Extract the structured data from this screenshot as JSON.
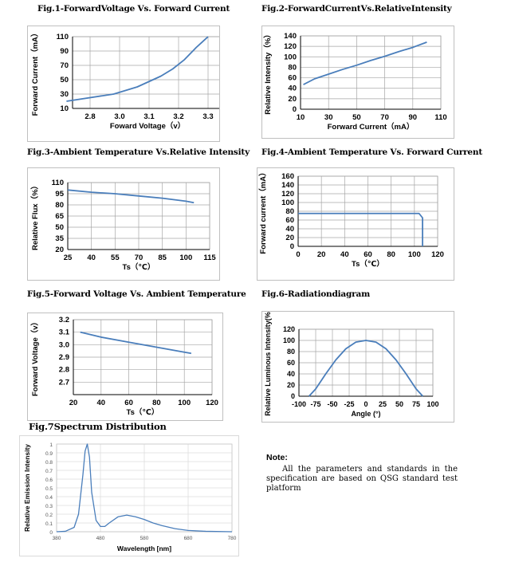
{
  "figures": [
    {
      "title": "Fig.1-ForwardVoltage Vs. Forward Current"
    },
    {
      "title": "Fig.2-ForwardCurrentVs.RelativeIntensity"
    },
    {
      "title": "Fig.3-Ambient Temperature Vs.Relative Intensity"
    },
    {
      "title": "Fig.4-Ambient Temperature Vs. Forward Current"
    },
    {
      "title": "Fig.5-Forward Voltage Vs. Ambient Temperature"
    },
    {
      "title": "Fig.6-Radiationdiagram"
    },
    {
      "title": "Fig.7Spectrum Distribution"
    }
  ],
  "note": {
    "heading": "Note:",
    "text": "All the parameters and standards in the specification are based on QSG standard test platform"
  },
  "colors": {
    "curve": "#4a7ebb",
    "grid": "#a6a6a6",
    "axis": "#000000"
  },
  "chart_data": [
    {
      "type": "line",
      "xlabel": "Foward Voltage（v）",
      "ylabel": "Forward Current（mA）",
      "xticks": [
        "2.8",
        "3.0",
        "3.1",
        "3.2",
        "3.3"
      ],
      "yticks": [
        "10",
        "30",
        "50",
        "70",
        "90",
        "110"
      ],
      "ylim": [
        10,
        110
      ],
      "x": [
        2.7,
        2.9,
        3.0,
        3.1,
        3.15,
        3.2,
        3.25,
        3.3
      ],
      "y": [
        20,
        30,
        40,
        55,
        65,
        78,
        95,
        110
      ],
      "grid": true
    },
    {
      "type": "line",
      "xlabel": "Forward Current（mA）",
      "ylabel": "Relative Intensity（%）",
      "xticks": [
        "10",
        "30",
        "50",
        "70",
        "90",
        "110"
      ],
      "yticks": [
        "0",
        "20",
        "40",
        "60",
        "80",
        "100",
        "120",
        "140"
      ],
      "xlim": [
        10,
        110
      ],
      "ylim": [
        0,
        140
      ],
      "x": [
        12,
        20,
        30,
        40,
        50,
        60,
        70,
        80,
        90,
        100
      ],
      "y": [
        47,
        58,
        67,
        76,
        84,
        93,
        101,
        110,
        118,
        128
      ],
      "grid": true
    },
    {
      "type": "line",
      "xlabel": "Ts（℃）",
      "ylabel": "Relative Flux（%）",
      "xticks": [
        "25",
        "40",
        "55",
        "70",
        "85",
        "100",
        "115"
      ],
      "yticks": [
        "20",
        "35",
        "50",
        "65",
        "80",
        "95",
        "110"
      ],
      "xlim": [
        25,
        115
      ],
      "ylim": [
        20,
        110
      ],
      "x": [
        25,
        40,
        55,
        70,
        85,
        100,
        105
      ],
      "y": [
        100,
        97,
        95,
        92,
        89,
        85,
        83
      ],
      "grid": true
    },
    {
      "type": "line",
      "xlabel": "Ts（℃）",
      "ylabel": "Forward current（mA）",
      "xticks": [
        "0",
        "20",
        "40",
        "60",
        "80",
        "100",
        "120"
      ],
      "yticks": [
        "0",
        "20",
        "40",
        "60",
        "80",
        "100",
        "120",
        "140",
        "160"
      ],
      "xlim": [
        0,
        120
      ],
      "ylim": [
        0,
        160
      ],
      "x": [
        0,
        100,
        104,
        107,
        107
      ],
      "y": [
        75,
        75,
        75,
        65,
        0
      ],
      "grid": true
    },
    {
      "type": "line",
      "xlabel": "Ts（℃）",
      "ylabel": "Forward Voltage（v）",
      "xticks": [
        "20",
        "40",
        "60",
        "80",
        "100",
        "120"
      ],
      "yticks": [
        "2.7",
        "2.8",
        "2.9",
        "3.0",
        "3.1",
        "3.2"
      ],
      "xlim": [
        20,
        120
      ],
      "ylim": [
        2.6,
        3.2
      ],
      "x": [
        25,
        40,
        60,
        80,
        100,
        105
      ],
      "y": [
        3.1,
        3.06,
        3.02,
        2.98,
        2.94,
        2.93
      ],
      "grid": true
    },
    {
      "type": "line",
      "xlabel": "Angle (°)",
      "ylabel": "Relative Luminous Intensity(%)",
      "xticks": [
        "-100",
        "-75",
        "-50",
        "-25",
        "0",
        "25",
        "50",
        "75",
        "100"
      ],
      "yticks": [
        "0",
        "20",
        "40",
        "60",
        "80",
        "100",
        "120"
      ],
      "xlim": [
        -100,
        100
      ],
      "ylim": [
        0,
        120
      ],
      "x": [
        -85,
        -75,
        -60,
        -45,
        -30,
        -15,
        0,
        15,
        30,
        45,
        60,
        75,
        85
      ],
      "y": [
        0,
        13,
        40,
        65,
        85,
        97,
        100,
        97,
        85,
        65,
        40,
        13,
        0
      ],
      "grid": true
    },
    {
      "type": "line",
      "xlabel": "Wavelength [nm]",
      "ylabel": "Relative Emission Intensity",
      "xticks": [
        "380",
        "480",
        "580",
        "680",
        "780"
      ],
      "yticks": [
        "0",
        "0.1",
        "0.2",
        "0.3",
        "0.4",
        "0.5",
        "0.6",
        "0.7",
        "0.8",
        "0.9",
        "1"
      ],
      "xlim": [
        380,
        780
      ],
      "ylim": [
        0,
        1
      ],
      "x": [
        380,
        400,
        420,
        430,
        440,
        445,
        450,
        455,
        460,
        470,
        480,
        490,
        500,
        520,
        540,
        560,
        580,
        600,
        620,
        650,
        680,
        720,
        780
      ],
      "y": [
        0,
        0.005,
        0.05,
        0.2,
        0.65,
        0.92,
        1.0,
        0.85,
        0.45,
        0.13,
        0.06,
        0.06,
        0.1,
        0.17,
        0.19,
        0.17,
        0.14,
        0.1,
        0.07,
        0.035,
        0.015,
        0.005,
        0
      ],
      "grid": true
    }
  ]
}
